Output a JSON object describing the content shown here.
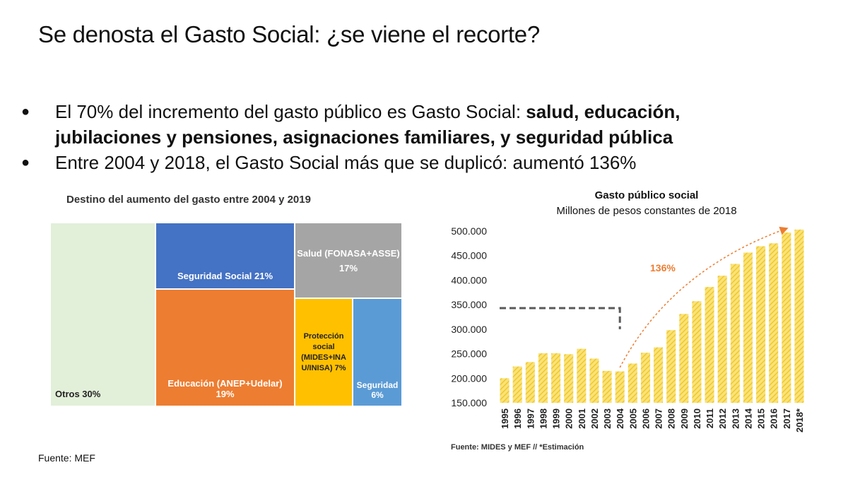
{
  "title": "Se denosta el Gasto Social: ¿se viene el recorte?",
  "bullets": [
    {
      "normal": "El 70% del incremento del gasto público es Gasto Social: ",
      "bold1": "salud, educación,",
      "bold2": "jubilaciones y pensiones, asignaciones familiares, y seguridad pública"
    },
    {
      "text": "Entre 2004 y 2018, el Gasto Social más que se duplicó: aumentó 136%"
    }
  ],
  "source": "Fuente: MEF",
  "chart_data": [
    {
      "type": "treemap",
      "title": "Destino del aumento del gasto entre 2004 y 2019",
      "items": [
        {
          "label": "Otros 30%",
          "line1": "Otros 30%",
          "line2": "",
          "value": 30,
          "color": "#e2efd9"
        },
        {
          "label": "Seguridad Social 21%",
          "line1": "Seguridad Social 21%",
          "line2": "",
          "value": 21,
          "color": "#4472c4"
        },
        {
          "label": "Educación (ANEP+Udelar) 19%",
          "line1": "Educación (ANEP+Udelar)",
          "line2": "19%",
          "value": 19,
          "color": "#ed7d31"
        },
        {
          "label": "Salud (FONASA+ASSE) 17%",
          "line1": "Salud (FONASA+ASSE)",
          "line2": "17%",
          "value": 17,
          "color": "#a5a5a5"
        },
        {
          "label": "Protección social (MIDES+INAU/INISA) 7%",
          "line1": "Protección",
          "line2": "social",
          "line3": "(MIDES+INA",
          "line4": "U/INISA) 7%",
          "value": 7,
          "color": "#ffc000"
        },
        {
          "label": "Seguridad 6%",
          "line1": "Seguridad",
          "line2": "6%",
          "value": 6,
          "color": "#5b9bd5"
        }
      ]
    },
    {
      "type": "bar",
      "title": "Gasto público social",
      "subtitle": "Millones de pesos constantes de 2018",
      "categories": [
        "1995",
        "1996",
        "1997",
        "1998",
        "1999",
        "2000",
        "2001",
        "2002",
        "2003",
        "2004",
        "2005",
        "2006",
        "2007",
        "2008",
        "2009",
        "2010",
        "2011",
        "2012",
        "2013",
        "2014",
        "2015",
        "2016",
        "2017",
        "2018*"
      ],
      "values": [
        200000,
        224000,
        233000,
        251000,
        251000,
        249000,
        260000,
        240000,
        215000,
        214000,
        230000,
        252000,
        263000,
        298000,
        331000,
        357000,
        386000,
        409000,
        433000,
        456000,
        469000,
        475000,
        497000,
        503000
      ],
      "ylim": [
        150000,
        510000
      ],
      "yticks": [
        "150.000",
        "200.000",
        "250.000",
        "300.000",
        "350.000",
        "400.000",
        "450.000",
        "500.000"
      ],
      "yticks_values": [
        150000,
        200000,
        250000,
        300000,
        350000,
        400000,
        450000,
        500000
      ],
      "bar_color": "#f5d44a",
      "annotation": "136%",
      "annotation_color": "#ed7d31",
      "source": "Fuente: MIDES y MEF // *Estimación"
    }
  ]
}
